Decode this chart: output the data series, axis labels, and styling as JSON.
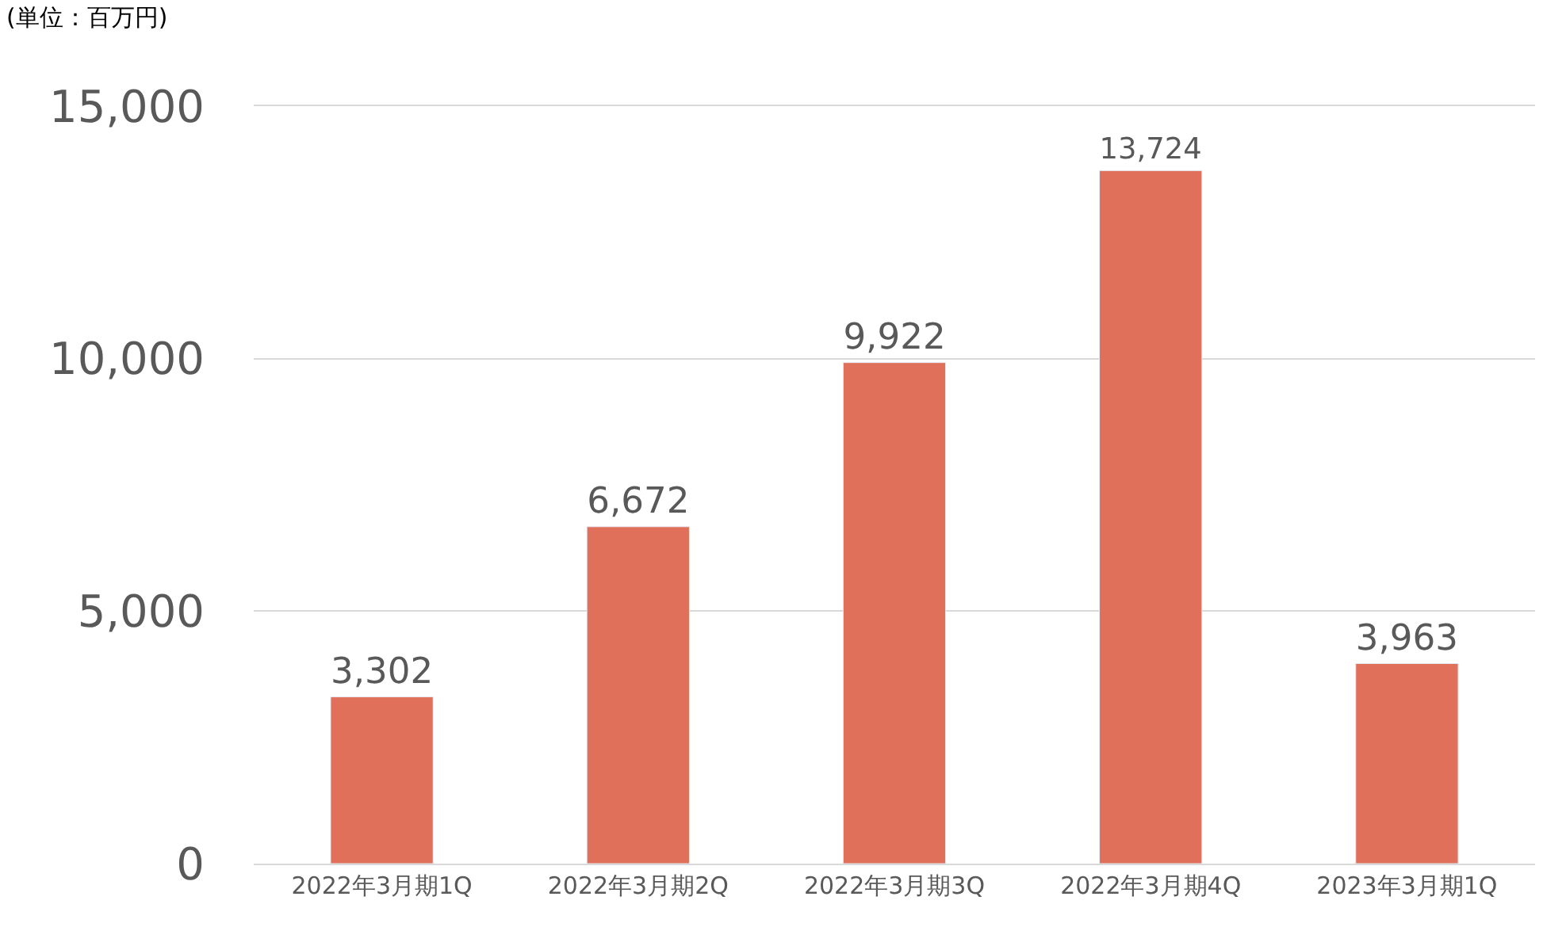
{
  "chart_data": {
    "type": "bar",
    "ylabel": "(単位：百万円)",
    "categories": [
      "2022年3月期1Q",
      "2022年3月期2Q",
      "2022年3月期3Q",
      "2022年3月期4Q",
      "2023年3月期1Q"
    ],
    "values": [
      3302,
      6672,
      9922,
      13724,
      3963
    ],
    "color": "#e07059",
    "ylim": [
      0,
      15000
    ],
    "yticks": [
      {
        "value": 0,
        "label": "0"
      },
      {
        "value": 5000,
        "label": "5,000"
      },
      {
        "value": 10000,
        "label": "10,000"
      },
      {
        "value": 15000,
        "label": "15,000"
      }
    ],
    "value_labels": [
      "3,302",
      "6,672",
      "9,922",
      "13,724",
      "3,963"
    ],
    "grid": "y",
    "legend": false
  }
}
